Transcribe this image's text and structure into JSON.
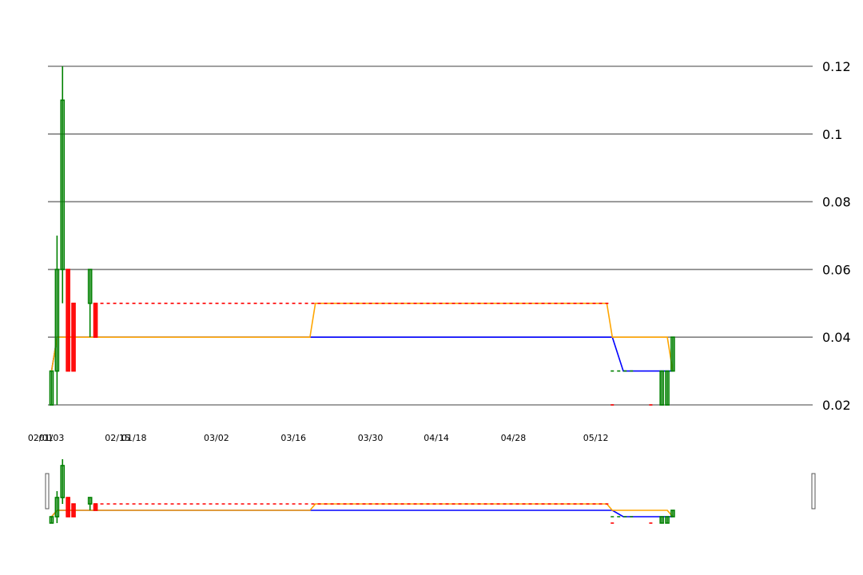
{
  "chart_data": {
    "type": "candlestick",
    "x_start": "01/03",
    "x_ticks": [
      "01/03",
      "01/18",
      "02/01",
      "02/15",
      "03/02",
      "03/16",
      "03/30",
      "04/14",
      "04/28",
      "05/12"
    ],
    "y_ticks": [
      "0.12",
      "0.1",
      "0.08",
      "0.06",
      "0.04",
      "0.02"
    ],
    "y_tick_values": [
      0.12,
      0.1,
      0.08,
      0.06,
      0.04,
      0.02
    ],
    "ylim": [
      0.02,
      0.12
    ],
    "grid": "horizontal",
    "y_axis_side": "right",
    "colors": {
      "up": "#008000",
      "down": "#ff0000",
      "line_blue": "#0000ff",
      "line_orange": "#ffa500",
      "grid": "#808080"
    },
    "candles": [
      {
        "date": "01/03",
        "open": 0.02,
        "high": 0.03,
        "low": 0.02,
        "close": 0.03
      },
      {
        "date": "01/04",
        "open": 0.03,
        "high": 0.07,
        "low": 0.02,
        "close": 0.06
      },
      {
        "date": "01/05",
        "open": 0.06,
        "high": 0.12,
        "low": 0.05,
        "close": 0.11
      },
      {
        "date": "01/06",
        "open": 0.06,
        "high": 0.06,
        "low": 0.03,
        "close": 0.03
      },
      {
        "date": "01/07",
        "open": 0.05,
        "high": 0.05,
        "low": 0.03,
        "close": 0.03
      },
      {
        "date": "01/10",
        "open": 0.05,
        "high": 0.06,
        "low": 0.04,
        "close": 0.06
      },
      {
        "date": "01/11",
        "open": 0.05,
        "high": 0.05,
        "low": 0.04,
        "close": 0.04
      },
      {
        "date": "05/24",
        "open": 0.02,
        "high": 0.03,
        "low": 0.02,
        "close": 0.03
      },
      {
        "date": "05/25",
        "open": 0.02,
        "high": 0.03,
        "low": 0.02,
        "close": 0.03
      },
      {
        "date": "05/26",
        "open": 0.03,
        "high": 0.04,
        "low": 0.03,
        "close": 0.04
      }
    ],
    "series": [
      {
        "color": "#0000ff",
        "points": [
          [
            "01/03",
            0.03
          ],
          [
            "02/03",
            0.03
          ],
          [
            "02/04",
            0.04
          ],
          [
            "05/15",
            0.04
          ],
          [
            "05/17",
            0.03
          ],
          [
            "05/26",
            0.03
          ]
        ]
      },
      {
        "color": "#ffa500",
        "points": [
          [
            "01/03",
            0.03
          ],
          [
            "01/04",
            0.04
          ],
          [
            "03/19",
            0.04
          ],
          [
            "03/20",
            0.05
          ],
          [
            "05/14",
            0.05
          ],
          [
            "05/15",
            0.04
          ],
          [
            "05/25",
            0.04
          ],
          [
            "05/26",
            0.03
          ]
        ]
      }
    ],
    "dashed_levels": [
      {
        "color": "#ff0000",
        "y": 0.05,
        "from": "01/11",
        "to": "05/14"
      },
      {
        "color": "#008000",
        "y": 0.03,
        "from": "05/15",
        "to": "05/19"
      },
      {
        "color": "#ff0000",
        "y": 0.02,
        "from": "05/15",
        "to": "05/15"
      },
      {
        "color": "#ff0000",
        "y": 0.02,
        "from": "05/22",
        "to": "05/22"
      }
    ]
  }
}
